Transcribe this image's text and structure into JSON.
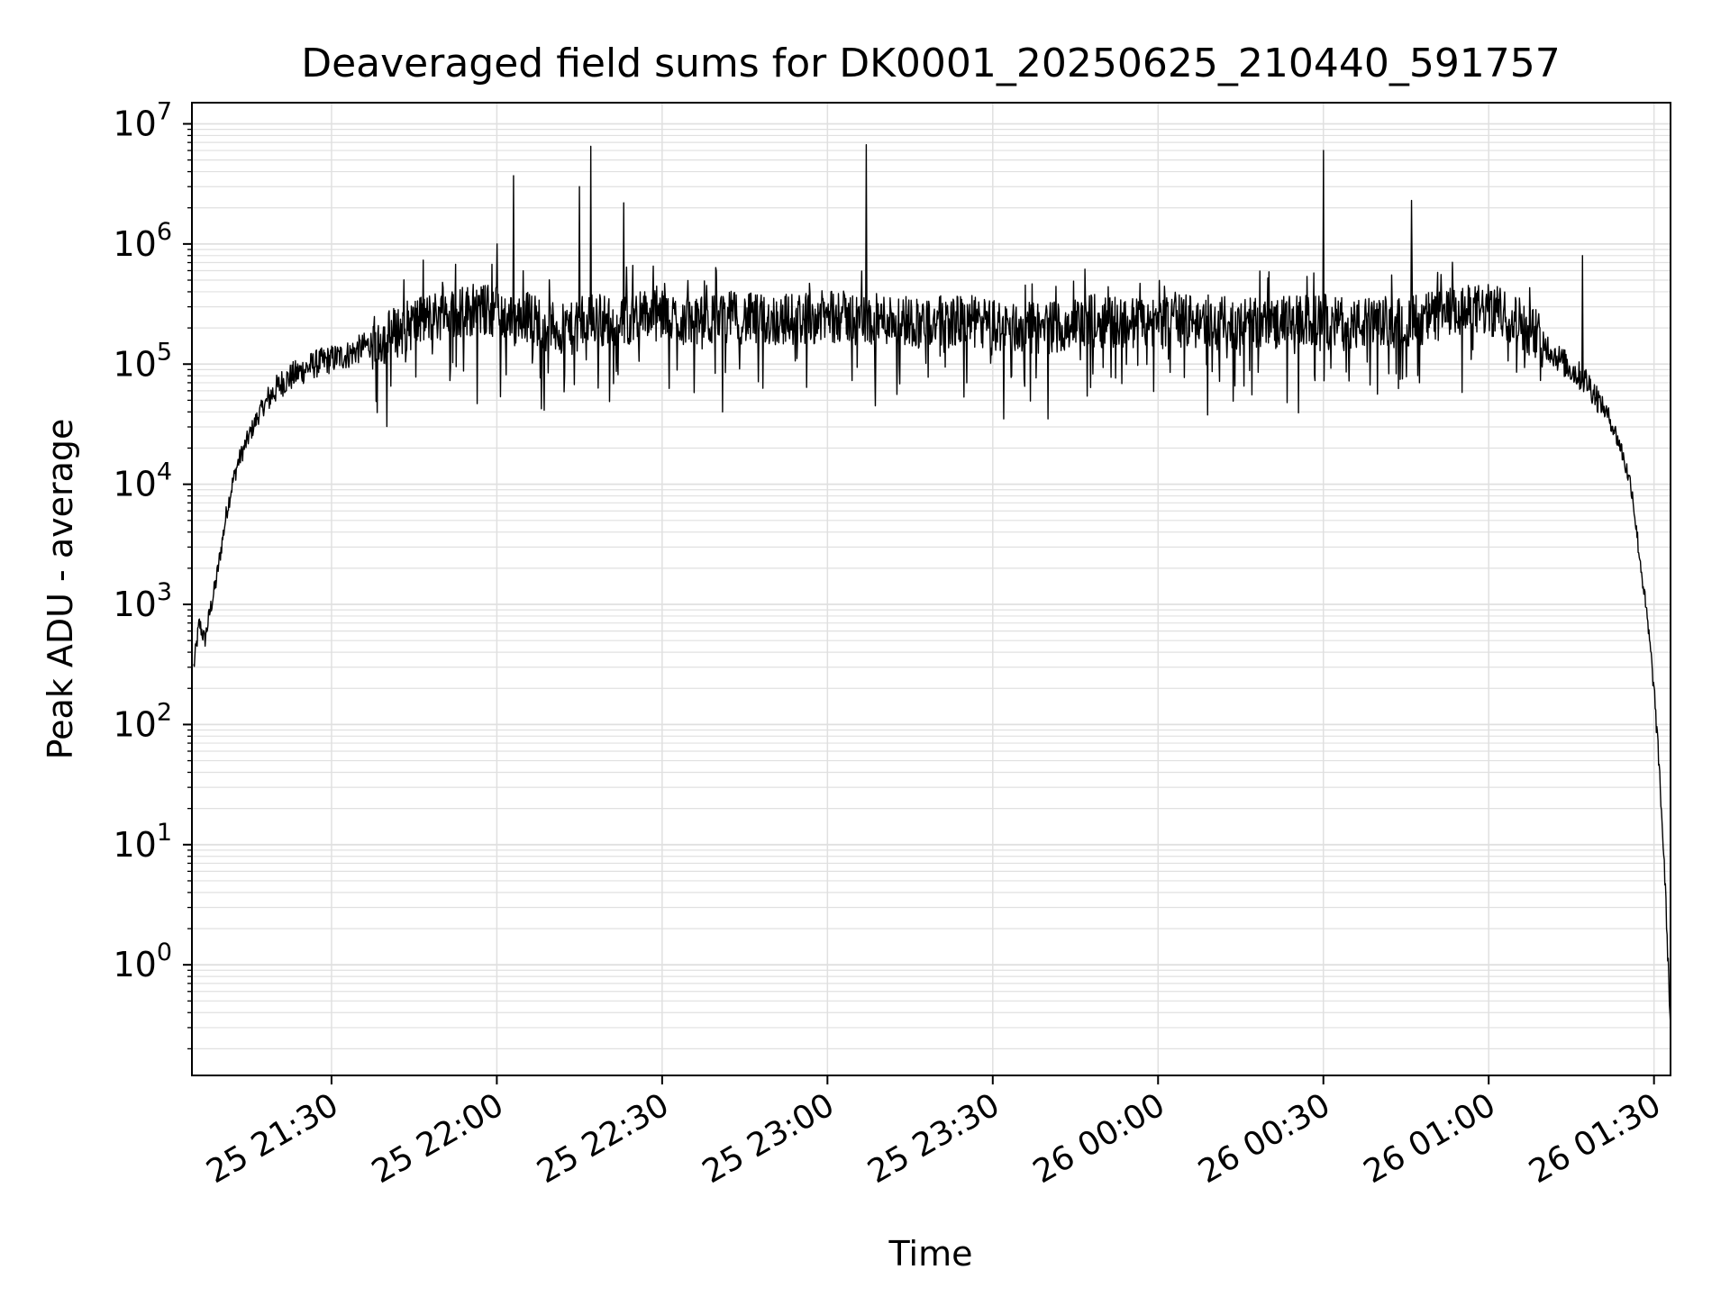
{
  "chart_data": {
    "type": "line",
    "title": "Deaveraged field sums for DK0001_20250625_210440_591757",
    "xlabel": "Time",
    "ylabel": "Peak ADU - average",
    "yscale": "log",
    "ylim": [
      0.12,
      15000000
    ],
    "xlim": [
      "2025-06-25 21:04:40",
      "2025-06-26 01:33:00"
    ],
    "grid": true,
    "line_color": "#000000",
    "grid_color": "#e0e0e0",
    "x_ticks": [
      {
        "label": "25 21:30",
        "t": "2025-06-25 21:30"
      },
      {
        "label": "25 22:00",
        "t": "2025-06-25 22:00"
      },
      {
        "label": "25 22:30",
        "t": "2025-06-25 22:30"
      },
      {
        "label": "25 23:00",
        "t": "2025-06-25 23:00"
      },
      {
        "label": "25 23:30",
        "t": "2025-06-25 23:30"
      },
      {
        "label": "26 00:00",
        "t": "2025-06-26 00:00"
      },
      {
        "label": "26 00:30",
        "t": "2025-06-26 00:30"
      },
      {
        "label": "26 01:00",
        "t": "2025-06-26 01:00"
      },
      {
        "label": "26 01:30",
        "t": "2025-06-26 01:30"
      }
    ],
    "y_ticks": [
      {
        "base": "10",
        "exp": "0",
        "value": 1
      },
      {
        "base": "10",
        "exp": "1",
        "value": 10
      },
      {
        "base": "10",
        "exp": "2",
        "value": 100
      },
      {
        "base": "10",
        "exp": "3",
        "value": 1000
      },
      {
        "base": "10",
        "exp": "4",
        "value": 10000
      },
      {
        "base": "10",
        "exp": "5",
        "value": 100000
      },
      {
        "base": "10",
        "exp": "6",
        "value": 1000000
      },
      {
        "base": "10",
        "exp": "7",
        "value": 10000000
      }
    ],
    "series": [
      {
        "x": [
          "2025-06-25 21:05",
          "2025-06-25 21:06",
          "2025-06-25 21:07",
          "2025-06-25 21:08",
          "2025-06-25 21:09",
          "2025-06-25 21:10",
          "2025-06-25 21:11",
          "2025-06-25 21:12",
          "2025-06-25 21:13",
          "2025-06-25 21:15",
          "2025-06-25 21:17",
          "2025-06-25 21:19",
          "2025-06-25 21:21",
          "2025-06-25 21:23",
          "2025-06-25 21:25",
          "2025-06-25 21:27",
          "2025-06-25 21:30",
          "2025-06-25 21:33",
          "2025-06-25 21:36",
          "2025-06-25 21:40",
          "2025-06-25 21:45",
          "2025-06-25 21:50",
          "2025-06-25 21:55",
          "2025-06-25 22:00",
          "2025-06-25 22:03",
          "2025-06-25 22:05",
          "2025-06-25 22:09",
          "2025-06-25 22:12",
          "2025-06-25 22:15",
          "2025-06-25 22:17",
          "2025-06-25 22:19",
          "2025-06-25 22:22",
          "2025-06-25 22:25",
          "2025-06-25 22:30",
          "2025-06-25 22:37",
          "2025-06-25 22:42",
          "2025-06-25 22:48",
          "2025-06-25 22:55",
          "2025-06-25 23:02",
          "2025-06-25 23:07",
          "2025-06-25 23:12",
          "2025-06-25 23:18",
          "2025-06-25 23:25",
          "2025-06-25 23:30",
          "2025-06-25 23:33",
          "2025-06-25 23:40",
          "2025-06-25 23:48",
          "2025-06-25 23:55",
          "2025-06-26 00:00",
          "2025-06-26 00:05",
          "2025-06-26 00:12",
          "2025-06-26 00:20",
          "2025-06-26 00:28",
          "2025-06-26 00:30",
          "2025-06-26 00:34",
          "2025-06-26 00:40",
          "2025-06-26 00:46",
          "2025-06-26 00:50",
          "2025-06-26 00:55",
          "2025-06-26 00:58",
          "2025-06-26 01:00",
          "2025-06-26 01:03",
          "2025-06-26 01:06",
          "2025-06-26 01:09",
          "2025-06-26 01:12",
          "2025-06-26 01:15",
          "2025-06-26 01:18",
          "2025-06-26 01:20",
          "2025-06-26 01:22",
          "2025-06-26 01:24",
          "2025-06-26 01:26",
          "2025-06-26 01:27",
          "2025-06-26 01:28",
          "2025-06-26 01:29",
          "2025-06-26 01:30",
          "2025-06-26 01:31",
          "2025-06-26 01:32",
          "2025-06-26 01:33"
        ],
        "y": [
          300,
          700,
          500,
          900,
          1500,
          3000,
          6000,
          10000,
          15000,
          25000,
          40000,
          55000,
          70000,
          80000,
          90000,
          100000,
          110000,
          120000,
          140000,
          170000,
          220000,
          260000,
          280000,
          280000,
          220000,
          260000,
          210000,
          190000,
          200000,
          230000,
          240000,
          200000,
          260000,
          250000,
          220000,
          250000,
          230000,
          240000,
          250000,
          230000,
          240000,
          220000,
          230000,
          210000,
          200000,
          200000,
          230000,
          220000,
          220000,
          230000,
          220000,
          220000,
          230000,
          230000,
          210000,
          220000,
          230000,
          250000,
          270000,
          280000,
          280000,
          260000,
          220000,
          170000,
          120000,
          90000,
          70000,
          50000,
          35000,
          20000,
          9000,
          3500,
          1500,
          600,
          200,
          40,
          5,
          0.3
        ],
        "spikes": [
          {
            "x": "2025-06-25 22:00",
            "y": 1000000
          },
          {
            "x": "2025-06-25 22:03",
            "y": 3700000
          },
          {
            "x": "2025-06-25 22:15",
            "y": 3000000
          },
          {
            "x": "2025-06-25 22:17",
            "y": 6500000
          },
          {
            "x": "2025-06-25 22:23",
            "y": 2200000
          },
          {
            "x": "2025-06-25 22:41",
            "y": 40000
          },
          {
            "x": "2025-06-25 23:07",
            "y": 6700000
          },
          {
            "x": "2025-06-25 23:32",
            "y": 35000
          },
          {
            "x": "2025-06-25 23:40",
            "y": 35000
          },
          {
            "x": "2025-06-26 00:30",
            "y": 6000000
          },
          {
            "x": "2025-06-26 00:46",
            "y": 2300000
          },
          {
            "x": "2025-06-26 01:17",
            "y": 800000
          }
        ]
      }
    ]
  }
}
